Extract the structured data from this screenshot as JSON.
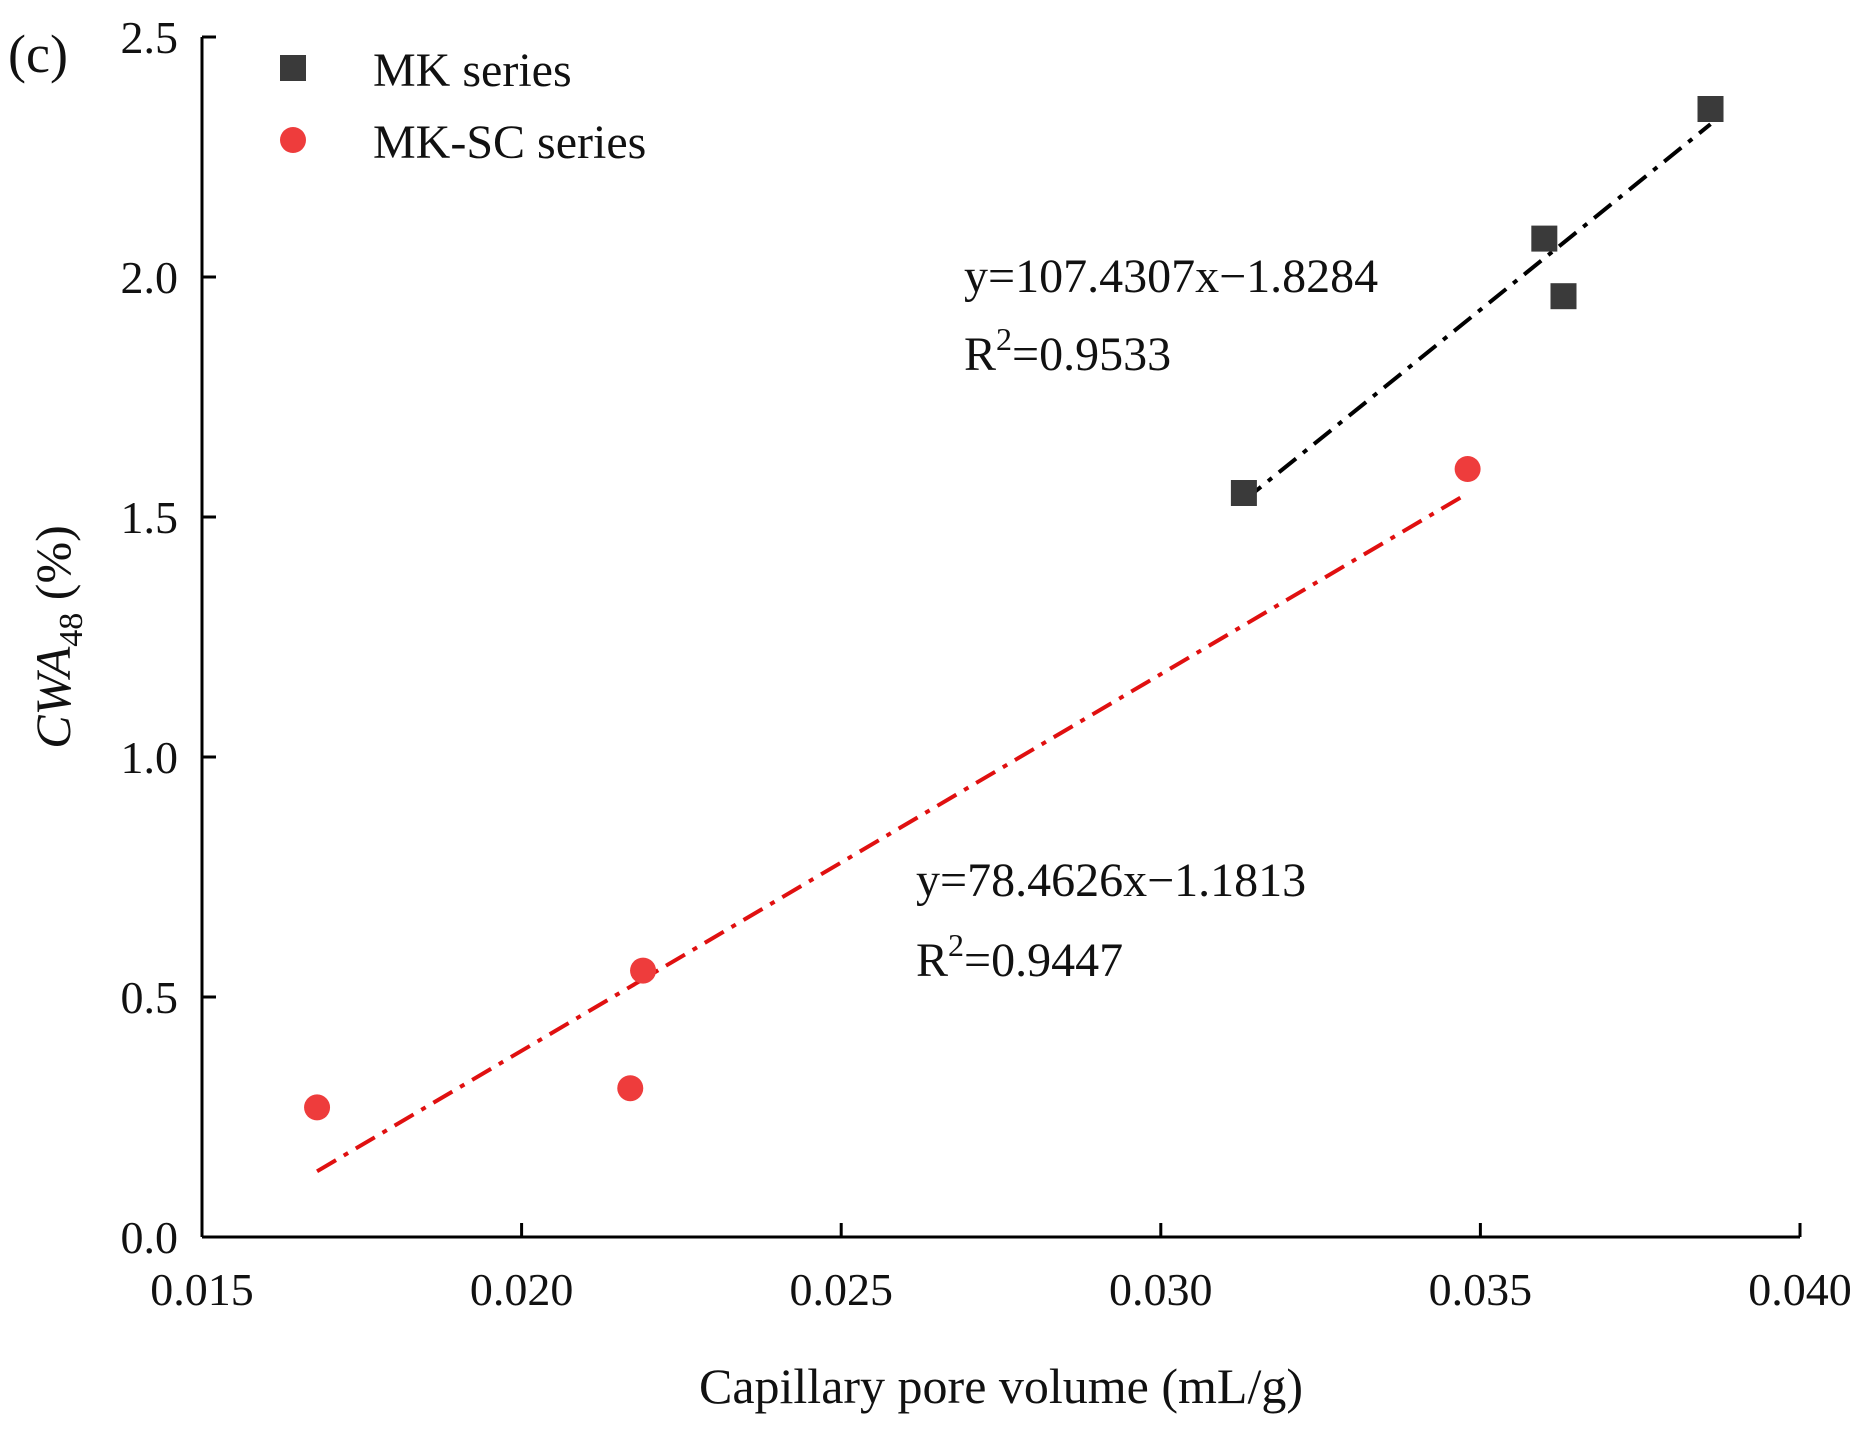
{
  "chart_data": {
    "type": "scatter",
    "panel_label": "(c)",
    "title": "",
    "xlabel": "Capillary pore volume (mL/g)",
    "ylabel": {
      "main": "CWA",
      "sub": "48",
      "unit": " (%)"
    },
    "xlim": [
      0.015,
      0.04
    ],
    "ylim": [
      0.0,
      2.5
    ],
    "x_ticks": [
      {
        "value": 0.015,
        "label": "0.015"
      },
      {
        "value": 0.02,
        "label": "0.020"
      },
      {
        "value": 0.025,
        "label": "0.025"
      },
      {
        "value": 0.03,
        "label": "0.030"
      },
      {
        "value": 0.035,
        "label": "0.035"
      },
      {
        "value": 0.04,
        "label": "0.040"
      }
    ],
    "y_ticks": [
      {
        "value": 0.0,
        "label": "0.0"
      },
      {
        "value": 0.5,
        "label": "0.5"
      },
      {
        "value": 1.0,
        "label": "1.0"
      },
      {
        "value": 1.5,
        "label": "1.5"
      },
      {
        "value": 2.0,
        "label": "2.0"
      },
      {
        "value": 2.5,
        "label": "2.5"
      }
    ],
    "grid": false,
    "legend_position": "top-left",
    "series": [
      {
        "name": "MK series",
        "marker": "square",
        "color": "#3a3a3a",
        "points": [
          {
            "x": 0.0313,
            "y": 1.55
          },
          {
            "x": 0.036,
            "y": 2.08
          },
          {
            "x": 0.0363,
            "y": 1.96
          },
          {
            "x": 0.0386,
            "y": 2.35
          }
        ],
        "fit": {
          "color": "#000000",
          "x_range": [
            0.0313,
            0.0386
          ],
          "equation": "y=107.4307x−1.8284",
          "r2_prefix": "R",
          "r2_sup": "2",
          "r2_value": "=0.9533"
        }
      },
      {
        "name": "MK-SC series",
        "marker": "circle",
        "color": "#ee3c3c",
        "points": [
          {
            "x": 0.0168,
            "y": 0.27
          },
          {
            "x": 0.0217,
            "y": 0.31
          },
          {
            "x": 0.0219,
            "y": 0.555
          },
          {
            "x": 0.0348,
            "y": 1.6
          }
        ],
        "fit": {
          "color": "#e01010",
          "x_range": [
            0.0168,
            0.0348
          ],
          "equation": "y=78.4626x−1.1813",
          "r2_prefix": "R",
          "r2_sup": "2",
          "r2_value": "=0.9447"
        }
      }
    ]
  }
}
